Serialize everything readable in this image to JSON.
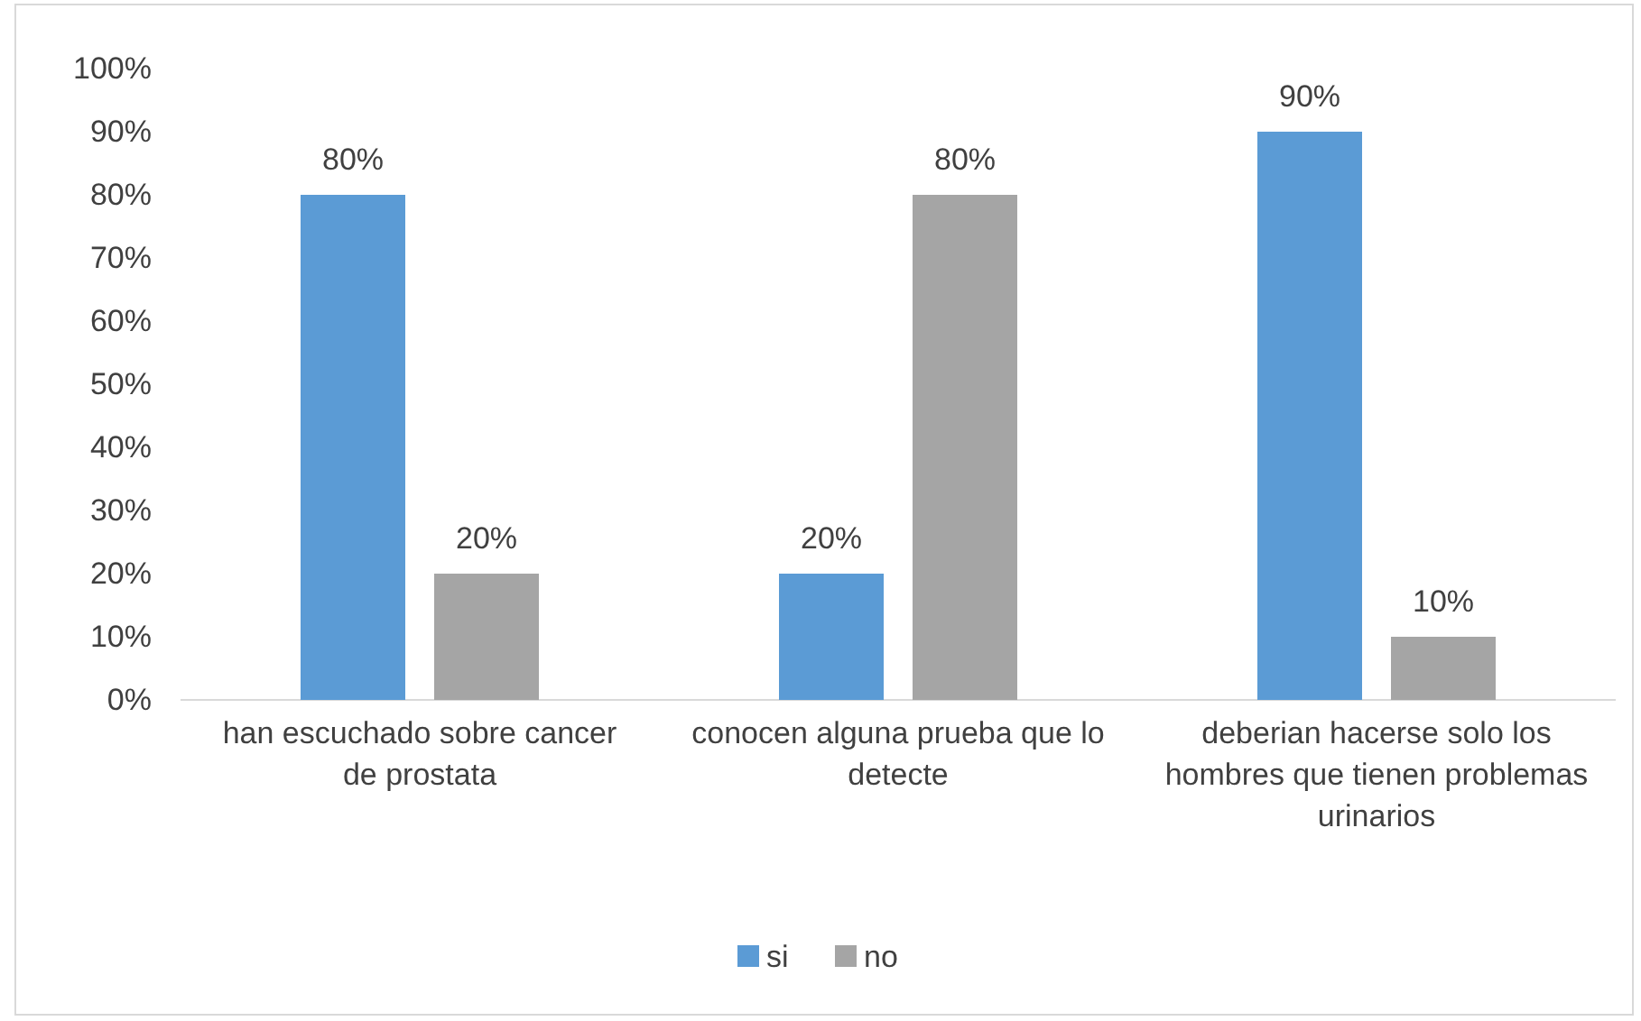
{
  "chart_data": {
    "type": "bar",
    "categories": [
      "han escuchado sobre cancer de prostata",
      "conocen alguna prueba que lo detecte",
      "deberian hacerse solo los hombres que tienen problemas urinarios"
    ],
    "series": [
      {
        "name": "si",
        "color": "#5b9bd5",
        "values": [
          80,
          20,
          90
        ],
        "value_labels": [
          "80%",
          "20%",
          "90%"
        ]
      },
      {
        "name": "no",
        "color": "#a5a5a5",
        "values": [
          20,
          80,
          10
        ],
        "value_labels": [
          "20%",
          "80%",
          "10%"
        ]
      }
    ],
    "ylim": [
      0,
      100
    ],
    "yticks": [
      {
        "value": 0,
        "label": "0%"
      },
      {
        "value": 10,
        "label": "10%"
      },
      {
        "value": 20,
        "label": "20%"
      },
      {
        "value": 30,
        "label": "30%"
      },
      {
        "value": 40,
        "label": "40%"
      },
      {
        "value": 50,
        "label": "50%"
      },
      {
        "value": 60,
        "label": "60%"
      },
      {
        "value": 70,
        "label": "70%"
      },
      {
        "value": 80,
        "label": "80%"
      },
      {
        "value": 90,
        "label": "90%"
      },
      {
        "value": 100,
        "label": "100%"
      }
    ],
    "grid": false,
    "legend": "bottom"
  }
}
